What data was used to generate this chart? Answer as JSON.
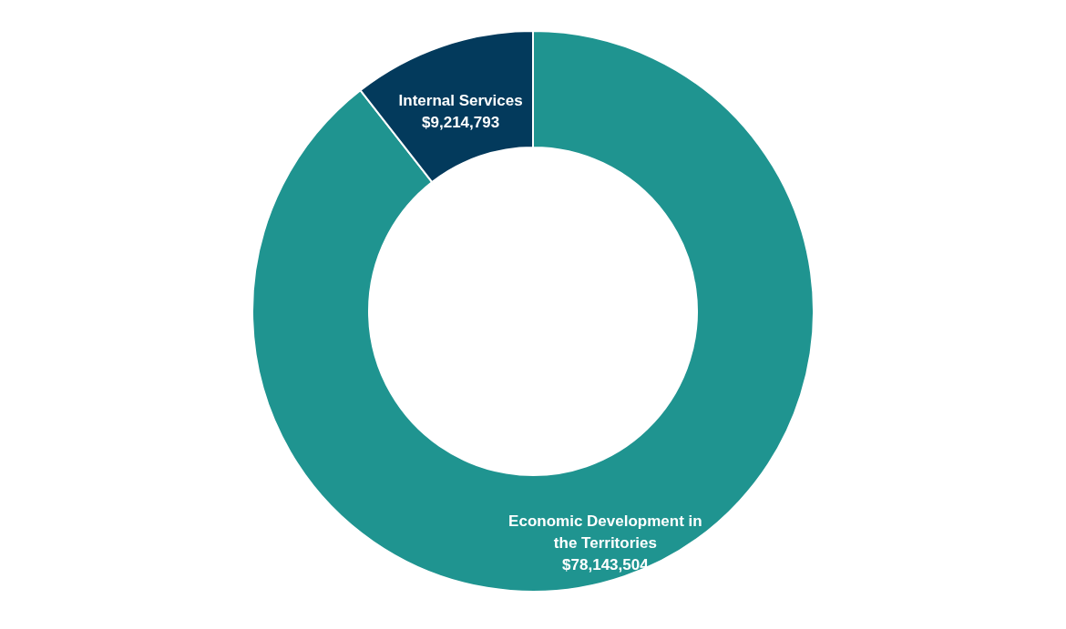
{
  "chart_data": {
    "type": "donut",
    "categories": [
      "Economic Development in the Territories",
      "Internal Services"
    ],
    "values": [
      78143504,
      9214793
    ],
    "value_labels": [
      "$78,143,504",
      "$9,214,793"
    ],
    "colors": [
      "#1f9490",
      "#033a5c"
    ]
  }
}
